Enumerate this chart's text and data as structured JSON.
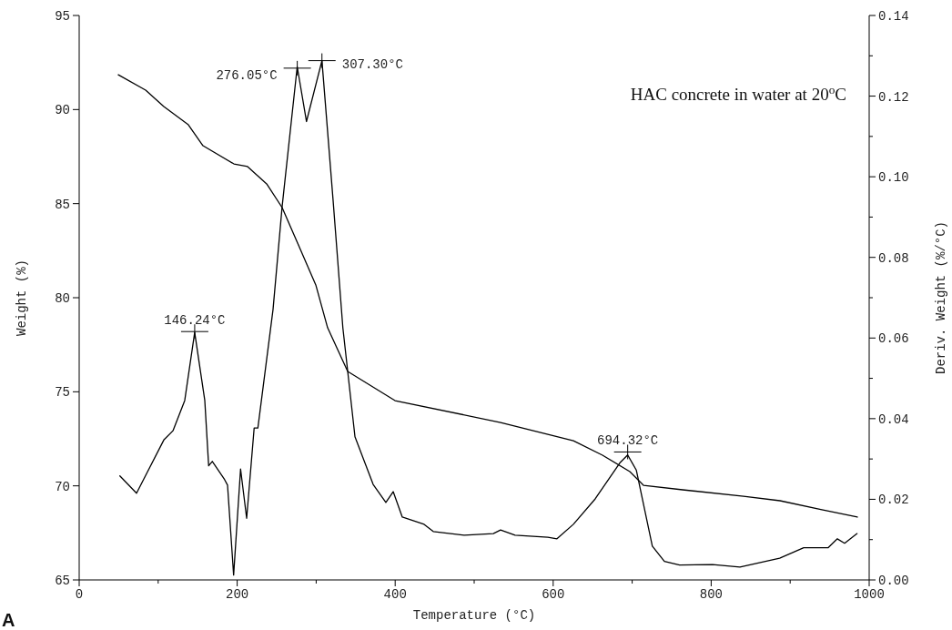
{
  "chart_data": {
    "type": "line",
    "xlabel": "Temperature (°C)",
    "ylabel": "Weight (%)",
    "y2label": "Deriv. Weight (%/°C)",
    "xlim": [
      0,
      1000
    ],
    "xticks": [
      0,
      {
        "value": 100,
        "label": null
      },
      200,
      {
        "value": 300,
        "label": null
      },
      400,
      {
        "value": 500,
        "label": null
      },
      600,
      {
        "value": 700,
        "label": null
      },
      800,
      {
        "value": 900,
        "label": null
      },
      1000
    ],
    "ylim": [
      65,
      95
    ],
    "yticks": [
      65,
      70,
      75,
      80,
      85,
      90,
      95
    ],
    "y2lim": [
      0,
      0.14
    ],
    "y2ticks": [
      {
        "value": 0,
        "label": "0.00"
      },
      {
        "value": 0.01,
        "label": null
      },
      {
        "value": 0.02,
        "label": "0.02"
      },
      {
        "value": 0.03,
        "label": null
      },
      {
        "value": 0.04,
        "label": "0.04"
      },
      {
        "value": 0.05,
        "label": null
      },
      {
        "value": 0.06,
        "label": "0.06"
      },
      {
        "value": 0.07,
        "label": null
      },
      {
        "value": 0.08,
        "label": "0.08"
      },
      {
        "value": 0.09,
        "label": null
      },
      {
        "value": 0.1,
        "label": "0.10"
      },
      {
        "value": 0.11,
        "label": null
      },
      {
        "value": 0.12,
        "label": "0.12"
      },
      {
        "value": 0.13,
        "label": null
      },
      {
        "value": 0.14,
        "label": "0.14"
      }
    ],
    "grid": false,
    "marker": "none",
    "line_style": "solid",
    "series": [
      {
        "color": "#000000",
        "x": [
          49.5,
          84.1,
          107.1,
          138.2,
          156.7,
          195.9,
          213.1,
          237.3,
          256.9,
          276.5,
          299.5,
          314.5,
          339.9,
          399.8,
          533.4,
          625.6,
          662.4,
          697,
          714.3,
          763.8,
          841,
          887.1,
          940.1,
          985
        ],
        "values": [
          91.85,
          91.03,
          90.16,
          89.19,
          88.08,
          87.11,
          86.97,
          86.05,
          84.79,
          82.9,
          80.68,
          78.4,
          76.08,
          74.53,
          73.37,
          72.4,
          71.63,
          70.76,
          70.03,
          69.79,
          69.45,
          69.21,
          68.73,
          68.34
        ]
      },
      {
        "color": "#000000",
        "axis": "y2",
        "x": [
          51.5,
          72.6,
          107.1,
          118.7,
          133.6,
          146.2,
          159,
          163.9,
          168.5,
          184,
          187.8,
          195.5,
          204.3,
          212,
          221.5,
          226.2,
          245.4,
          256.9,
          276,
          287.7,
          307.3,
          321.4,
          333.8,
          349.1,
          372.1,
          388.2,
          397.5,
          409,
          436.6,
          448.2,
          487.3,
          524.2,
          533.4,
          551.8,
          593.3,
          604.8,
          625.6,
          653.2,
          684.3,
          694.3,
          705.3,
          725.5,
          740.8,
          760,
          801.8,
          836.4,
          886.7,
          917.1,
          948.2,
          959.7,
          968.9,
          984.7
        ],
        "values": [
          0.0258,
          0.0215,
          0.0347,
          0.037,
          0.0445,
          0.0614,
          0.0445,
          0.0283,
          0.0294,
          0.0249,
          0.0235,
          0.0012,
          0.0275,
          0.0153,
          0.0377,
          0.0377,
          0.0671,
          0.0926,
          0.1273,
          0.1137,
          0.1288,
          0.0942,
          0.0625,
          0.0355,
          0.0237,
          0.0192,
          0.0219,
          0.0156,
          0.0138,
          0.012,
          0.0111,
          0.0115,
          0.0124,
          0.0111,
          0.0106,
          0.0102,
          0.0138,
          0.0201,
          0.029,
          0.031,
          0.0272,
          0.0084,
          0.0046,
          0.0037,
          0.0038,
          0.0032,
          0.0054,
          0.008,
          0.008,
          0.0102,
          0.0091,
          0.0115
        ]
      }
    ],
    "annotations": [
      {
        "text": "146.24°C",
        "x": 146.24,
        "y": 78.2
      },
      {
        "text": "276.05°C",
        "x": 276.05,
        "y": 92.2
      },
      {
        "text": "307.30°C",
        "x": 307.3,
        "y": 92.6
      },
      {
        "text": "694.32°C",
        "x": 694.32,
        "y": 71.8
      },
      "HAC concrete in water at 20$^{o}$C",
      "A"
    ]
  }
}
